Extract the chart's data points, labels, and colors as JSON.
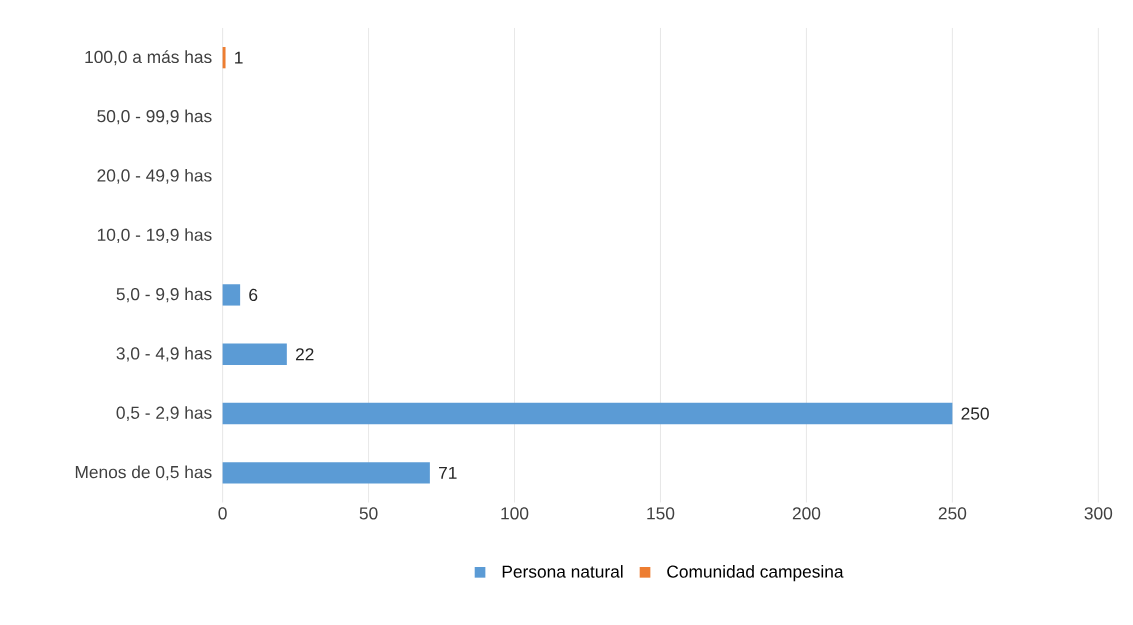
{
  "chart_data": {
    "type": "bar",
    "orientation": "horizontal",
    "categories": [
      "100,0 a más has",
      "50,0 - 99,9 has",
      "20,0 - 49,9 has",
      "10,0 - 19,9 has",
      "5,0 - 9,9 has",
      "3,0 - 4,9 has",
      "0,5 - 2,9 has",
      "Menos de 0,5 has"
    ],
    "series": [
      {
        "name": "Persona natural",
        "color": "#5b9bd5",
        "values": [
          null,
          null,
          null,
          null,
          6,
          22,
          250,
          71
        ]
      },
      {
        "name": "Comunidad campesina",
        "color": "#ed7d31",
        "values": [
          1,
          null,
          null,
          null,
          null,
          null,
          null,
          null
        ]
      }
    ],
    "xlim": [
      0,
      300
    ],
    "xticks": [
      0,
      50,
      100,
      150,
      200,
      250,
      300
    ],
    "grid": "x",
    "legend": "bottom",
    "data_labels": true
  }
}
